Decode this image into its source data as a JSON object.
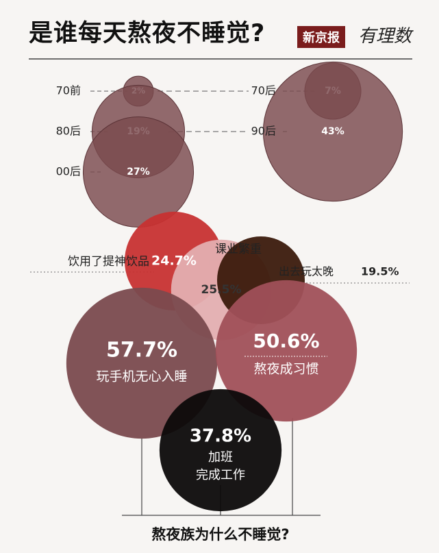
{
  "header": {
    "title": "是谁每天熬夜不睡觉?",
    "brand_box": "新京报",
    "brand_script": "有理数"
  },
  "chart_data": [
    {
      "type": "bubble",
      "groups": [
        {
          "label": "70前",
          "value": 2,
          "display": "2%"
        },
        {
          "label": "80后",
          "value": 19,
          "display": "19%"
        },
        {
          "label": "00后",
          "value": 27,
          "display": "27%"
        },
        {
          "label": "70后",
          "value": 7,
          "display": "7%"
        },
        {
          "label": "90后",
          "value": 43,
          "display": "43%"
        }
      ]
    },
    {
      "type": "bubble",
      "title": "熬夜族为什么不睡觉?",
      "reasons": [
        {
          "label": "饮用了提神饮品",
          "value": 24.7,
          "display": "24.7%",
          "color": "#c73232"
        },
        {
          "label": "课业繁重",
          "value": 25.5,
          "display": "25.5%",
          "color": "#e3aeb0"
        },
        {
          "label": "出去玩太晚",
          "value": 19.5,
          "display": "19.5%",
          "color": "#3b1a0c"
        },
        {
          "label": "玩手机无心入睡",
          "value": 57.7,
          "display": "57.7%",
          "color": "#7a4a4e"
        },
        {
          "label": "熬夜成习惯",
          "value": 50.6,
          "display": "50.6%",
          "color": "#a05059"
        },
        {
          "label": "加班完成工作",
          "label_lines": [
            "加班",
            "完成工作"
          ],
          "value": 37.8,
          "display": "37.8%",
          "color": "#0c0a0a"
        }
      ]
    }
  ],
  "colors": {
    "age_bubble": "#7a4a4e",
    "accent": "#7a1c1c"
  }
}
